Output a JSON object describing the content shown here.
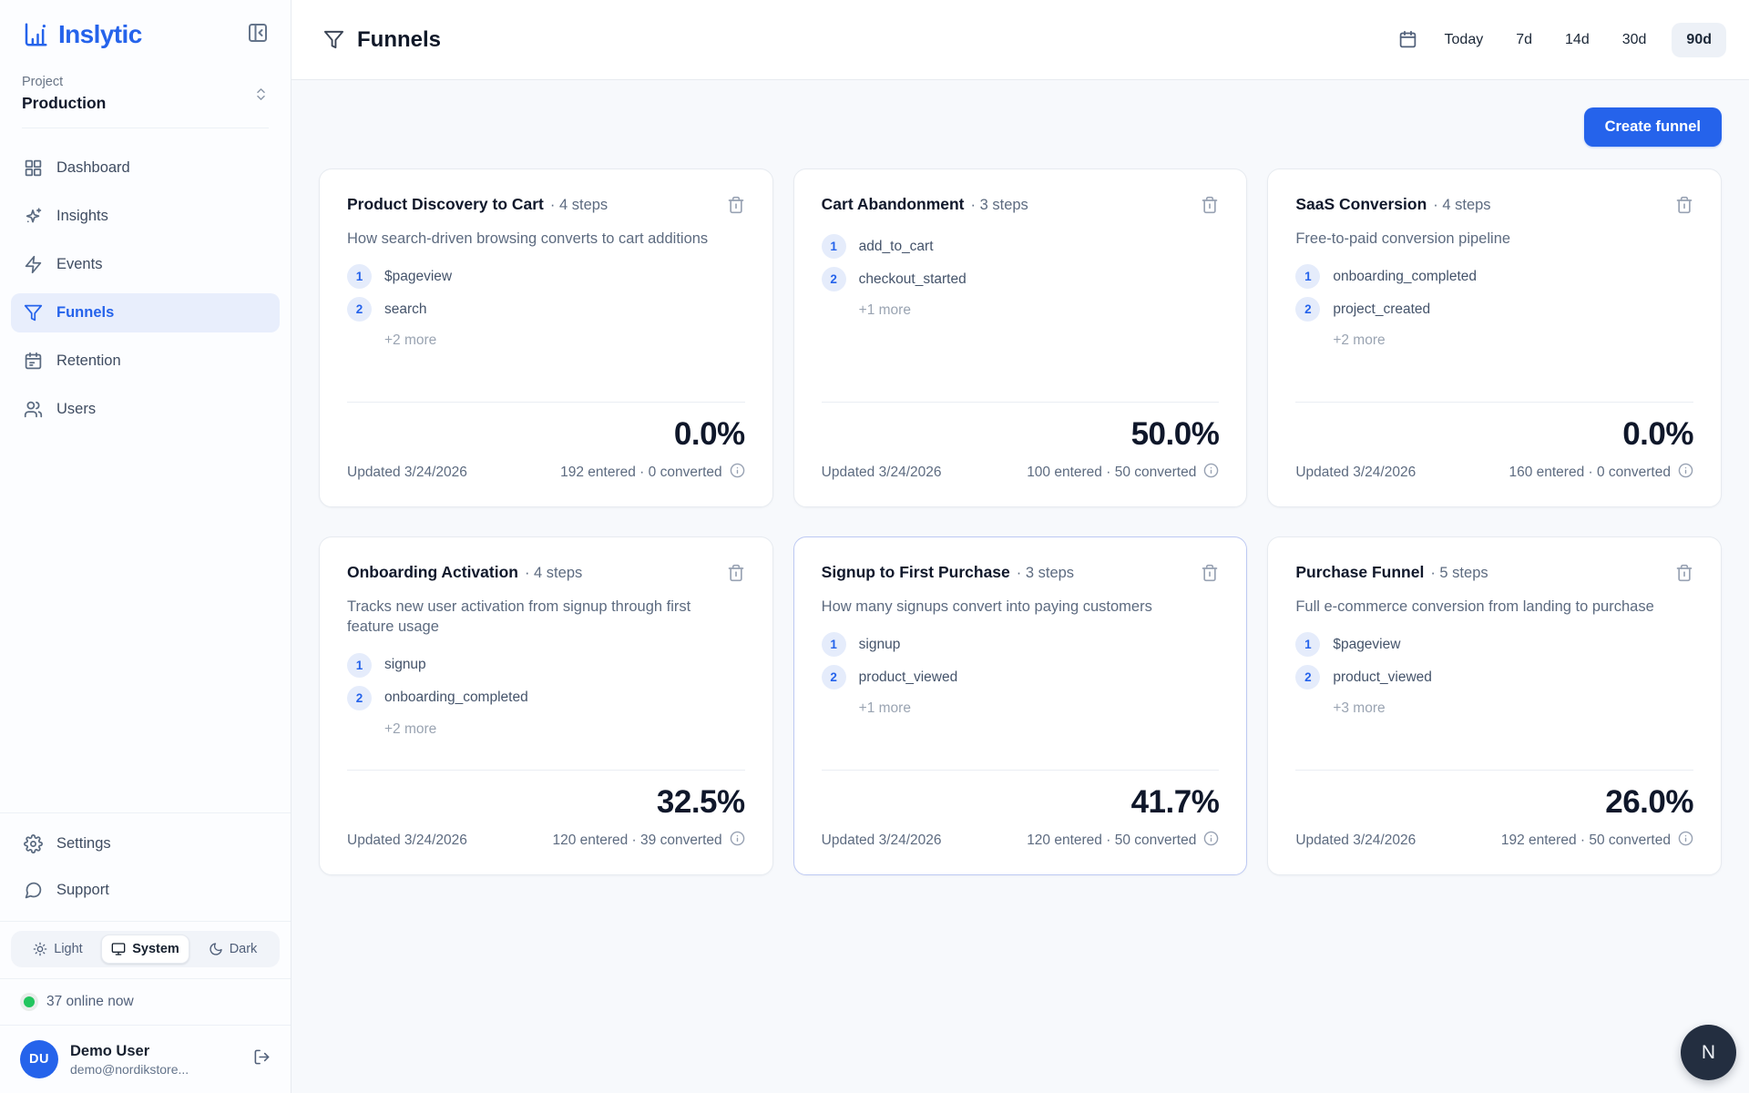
{
  "colors": {
    "accent": "#2563eb",
    "accent_soft": "#e8eefc",
    "text_dark": "#0f172a",
    "border": "#e7ebf0",
    "bg_main": "#f7f9fc",
    "green": "#22c55e",
    "fab_bg": "#232e40",
    "highlight_border": "#bdc9f3"
  },
  "sidebar": {
    "logo_text": "Inslytic",
    "project": {
      "label": "Project",
      "value": "Production"
    },
    "nav": [
      {
        "label": "Dashboard",
        "icon": "dashboard",
        "active": false
      },
      {
        "label": "Insights",
        "icon": "sparkles",
        "active": false
      },
      {
        "label": "Events",
        "icon": "zap",
        "active": false
      },
      {
        "label": "Funnels",
        "icon": "funnel",
        "active": true
      },
      {
        "label": "Retention",
        "icon": "calendar",
        "active": false
      },
      {
        "label": "Users",
        "icon": "users",
        "active": false
      }
    ],
    "footer_nav": [
      {
        "label": "Settings",
        "icon": "gear"
      },
      {
        "label": "Support",
        "icon": "chat"
      }
    ],
    "theme_toggle": {
      "options": [
        {
          "label": "Light",
          "icon": "sun",
          "active": false
        },
        {
          "label": "System",
          "icon": "monitor",
          "active": true
        },
        {
          "label": "Dark",
          "icon": "moon",
          "active": false
        }
      ]
    },
    "online_status": "37 online now",
    "user": {
      "initials": "DU",
      "name": "Demo User",
      "email": "demo@nordikstore..."
    }
  },
  "header": {
    "title": "Funnels",
    "ranges": [
      {
        "label": "Today",
        "active": false
      },
      {
        "label": "7d",
        "active": false
      },
      {
        "label": "14d",
        "active": false
      },
      {
        "label": "30d",
        "active": false
      },
      {
        "label": "90d",
        "active": true
      }
    ]
  },
  "main": {
    "create_button_label": "Create funnel",
    "funnels": [
      {
        "name": "Product Discovery to Cart",
        "steps_meta": "· 4 steps",
        "description": "How search-driven browsing converts to cart additions",
        "steps": [
          {
            "n": "1",
            "event": "$pageview"
          },
          {
            "n": "2",
            "event": "search"
          }
        ],
        "more": "+2 more",
        "rate": "0.0%",
        "updated": "Updated 3/24/2026",
        "stats": "192 entered · 0 converted",
        "highlighted": false
      },
      {
        "name": "Cart Abandonment",
        "steps_meta": "· 3 steps",
        "description": "",
        "steps": [
          {
            "n": "1",
            "event": "add_to_cart"
          },
          {
            "n": "2",
            "event": "checkout_started"
          }
        ],
        "more": "+1 more",
        "rate": "50.0%",
        "updated": "Updated 3/24/2026",
        "stats": "100 entered · 50 converted",
        "highlighted": false
      },
      {
        "name": "SaaS Conversion",
        "steps_meta": "· 4 steps",
        "description": "Free-to-paid conversion pipeline",
        "steps": [
          {
            "n": "1",
            "event": "onboarding_completed"
          },
          {
            "n": "2",
            "event": "project_created"
          }
        ],
        "more": "+2 more",
        "rate": "0.0%",
        "updated": "Updated 3/24/2026",
        "stats": "160 entered · 0 converted",
        "highlighted": false
      },
      {
        "name": "Onboarding Activation",
        "steps_meta": "· 4 steps",
        "description": "Tracks new user activation from signup through first feature usage",
        "steps": [
          {
            "n": "1",
            "event": "signup"
          },
          {
            "n": "2",
            "event": "onboarding_completed"
          }
        ],
        "more": "+2 more",
        "rate": "32.5%",
        "updated": "Updated 3/24/2026",
        "stats": "120 entered · 39 converted",
        "highlighted": false
      },
      {
        "name": "Signup to First Purchase",
        "steps_meta": "· 3 steps",
        "description": "How many signups convert into paying customers",
        "steps": [
          {
            "n": "1",
            "event": "signup"
          },
          {
            "n": "2",
            "event": "product_viewed"
          }
        ],
        "more": "+1 more",
        "rate": "41.7%",
        "updated": "Updated 3/24/2026",
        "stats": "120 entered · 50 converted",
        "highlighted": true
      },
      {
        "name": "Purchase Funnel",
        "steps_meta": "· 5 steps",
        "description": "Full e-commerce conversion from landing to purchase",
        "steps": [
          {
            "n": "1",
            "event": "$pageview"
          },
          {
            "n": "2",
            "event": "product_viewed"
          }
        ],
        "more": "+3 more",
        "rate": "26.0%",
        "updated": "Updated 3/24/2026",
        "stats": "192 entered · 50 converted",
        "highlighted": false
      }
    ]
  },
  "floating_button_label": "N"
}
